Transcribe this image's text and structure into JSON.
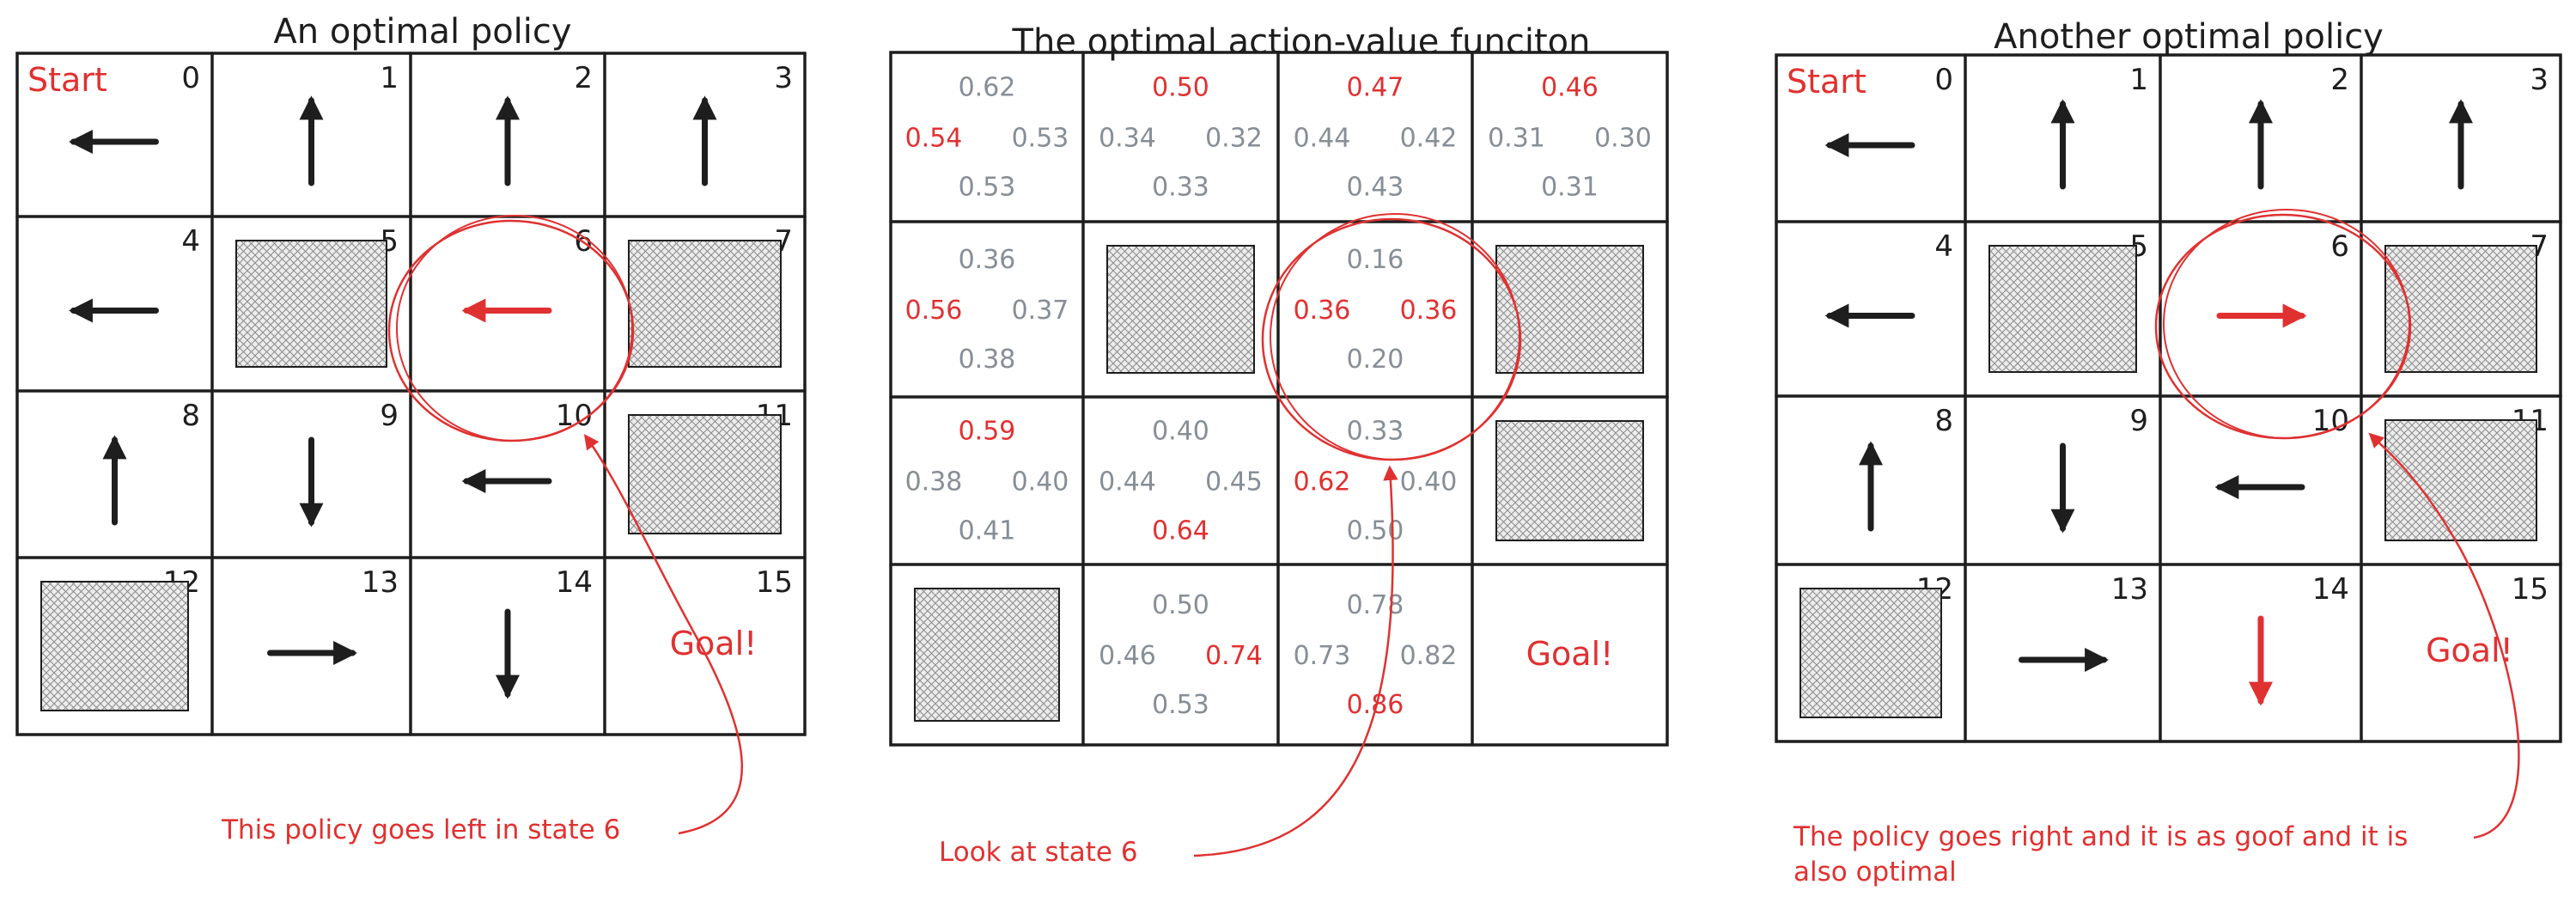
{
  "colors": {
    "ink": "#1e1e1e",
    "accent": "#e03131",
    "qvalue": "#868e96"
  },
  "panels": [
    {
      "title": "An optimal policy",
      "cells": [
        {
          "num": "0",
          "label": "Start",
          "arrow": "left",
          "highlight": false
        },
        {
          "num": "1",
          "arrow": "up",
          "highlight": false
        },
        {
          "num": "2",
          "arrow": "up",
          "highlight": false
        },
        {
          "num": "3",
          "arrow": "up",
          "highlight": false
        },
        {
          "num": "4",
          "arrow": "left",
          "highlight": false
        },
        {
          "num": "5",
          "wall": true
        },
        {
          "num": "6",
          "arrow": "left",
          "highlight": true
        },
        {
          "num": "7",
          "wall": true
        },
        {
          "num": "8",
          "arrow": "up",
          "highlight": false
        },
        {
          "num": "9",
          "arrow": "down",
          "highlight": false
        },
        {
          "num": "10",
          "arrow": "left",
          "highlight": false
        },
        {
          "num": "11",
          "wall": true
        },
        {
          "num": "12",
          "wall": true
        },
        {
          "num": "13",
          "arrow": "right",
          "highlight": false
        },
        {
          "num": "14",
          "arrow": "down",
          "highlight": false
        },
        {
          "num": "15",
          "label": "Goal!"
        }
      ],
      "note": "This policy goes left in state 6"
    },
    {
      "title": "The optimal action-value funciton",
      "qcells": [
        {
          "up": "0.62",
          "left": "0.54",
          "right": "0.53",
          "down": "0.53",
          "best": [
            "left"
          ]
        },
        {
          "up": "0.50",
          "left": "0.34",
          "right": "0.32",
          "down": "0.33",
          "best": [
            "up"
          ]
        },
        {
          "up": "0.47",
          "left": "0.44",
          "right": "0.42",
          "down": "0.43",
          "best": [
            "up"
          ]
        },
        {
          "up": "0.46",
          "left": "0.31",
          "right": "0.30",
          "down": "0.31",
          "best": [
            "up"
          ]
        },
        {
          "up": "0.36",
          "left": "0.56",
          "right": "0.37",
          "down": "0.38",
          "best": [
            "left"
          ]
        },
        {
          "wall": true
        },
        {
          "up": "0.16",
          "left": "0.36",
          "right": "0.36",
          "down": "0.20",
          "best": [
            "left",
            "right"
          ]
        },
        {
          "wall": true
        },
        {
          "up": "0.59",
          "left": "0.38",
          "right": "0.40",
          "down": "0.41",
          "best": [
            "up"
          ]
        },
        {
          "up": "0.40",
          "left": "0.44",
          "right": "0.45",
          "down": "0.64",
          "best": [
            "down"
          ]
        },
        {
          "up": "0.33",
          "left": "0.62",
          "right": "0.40",
          "down": "0.50",
          "best": [
            "left"
          ]
        },
        {
          "wall": true
        },
        {
          "wall": true
        },
        {
          "up": "0.50",
          "left": "0.46",
          "right": "0.74",
          "down": "0.53",
          "best": [
            "right"
          ]
        },
        {
          "up": "0.78",
          "left": "0.73",
          "right": "0.82",
          "down": "0.86",
          "best": [
            "down"
          ]
        },
        {
          "label": "Goal!"
        }
      ],
      "note": "Look at state 6"
    },
    {
      "title": "Another optimal policy",
      "cells": [
        {
          "num": "0",
          "label": "Start",
          "arrow": "left",
          "highlight": false
        },
        {
          "num": "1",
          "arrow": "up",
          "highlight": false
        },
        {
          "num": "2",
          "arrow": "up",
          "highlight": false
        },
        {
          "num": "3",
          "arrow": "up",
          "highlight": false
        },
        {
          "num": "4",
          "arrow": "left",
          "highlight": false
        },
        {
          "num": "5",
          "wall": true
        },
        {
          "num": "6",
          "arrow": "right",
          "highlight": true
        },
        {
          "num": "7",
          "wall": true
        },
        {
          "num": "8",
          "arrow": "up",
          "highlight": false
        },
        {
          "num": "9",
          "arrow": "down",
          "highlight": false
        },
        {
          "num": "10",
          "arrow": "left",
          "highlight": false
        },
        {
          "num": "11",
          "wall": true
        },
        {
          "num": "12",
          "wall": true
        },
        {
          "num": "13",
          "arrow": "right",
          "highlight": false
        },
        {
          "num": "14",
          "arrow": "down",
          "highlight": true
        },
        {
          "num": "15",
          "label": "Goal!"
        }
      ],
      "note": "The policy goes right and it is as goof and it is also optimal"
    }
  ]
}
